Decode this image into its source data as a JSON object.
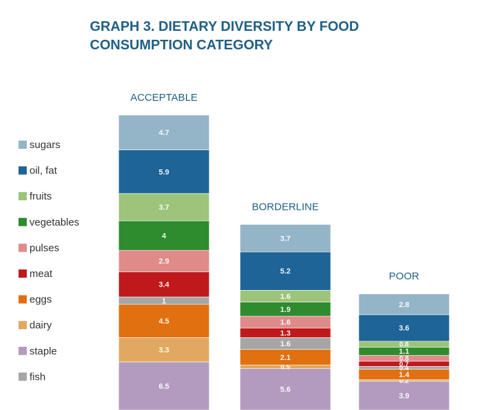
{
  "chart_data": {
    "type": "stacked_bar",
    "title": "GRAPH 3. DIETARY DIVERSITY BY FOOD CONSUMPTION CATEGORY",
    "categories": [
      "ACCEPTABLE",
      "BORDERLINE",
      "POOR"
    ],
    "series": [
      {
        "name": "staple",
        "color": "#b39bc0",
        "values": [
          6.5,
          5.6,
          3.9
        ]
      },
      {
        "name": "dairy",
        "color": "#e0a860",
        "values": [
          3.3,
          0.5,
          0.2
        ]
      },
      {
        "name": "eggs",
        "color": "#e07010",
        "values": [
          4.5,
          2.1,
          1.4
        ]
      },
      {
        "name": "fish",
        "color": "#a6a6a6",
        "values": [
          1,
          1.6,
          0.4
        ]
      },
      {
        "name": "meat",
        "color": "#c0191c",
        "values": [
          3.4,
          1.3,
          0.7
        ]
      },
      {
        "name": "pulses",
        "color": "#e08a8a",
        "values": [
          2.9,
          1.6,
          0.8
        ]
      },
      {
        "name": "vegetables",
        "color": "#2e8b2e",
        "values": [
          4,
          1.9,
          1.1
        ]
      },
      {
        "name": "fruits",
        "color": "#9cc47a",
        "values": [
          3.7,
          1.6,
          0.8
        ]
      },
      {
        "name": "oil, fat",
        "color": "#1f6496",
        "values": [
          5.9,
          5.2,
          3.6
        ]
      },
      {
        "name": "sugars",
        "color": "#94b4c8",
        "values": [
          4.7,
          3.7,
          2.8
        ]
      }
    ]
  }
}
